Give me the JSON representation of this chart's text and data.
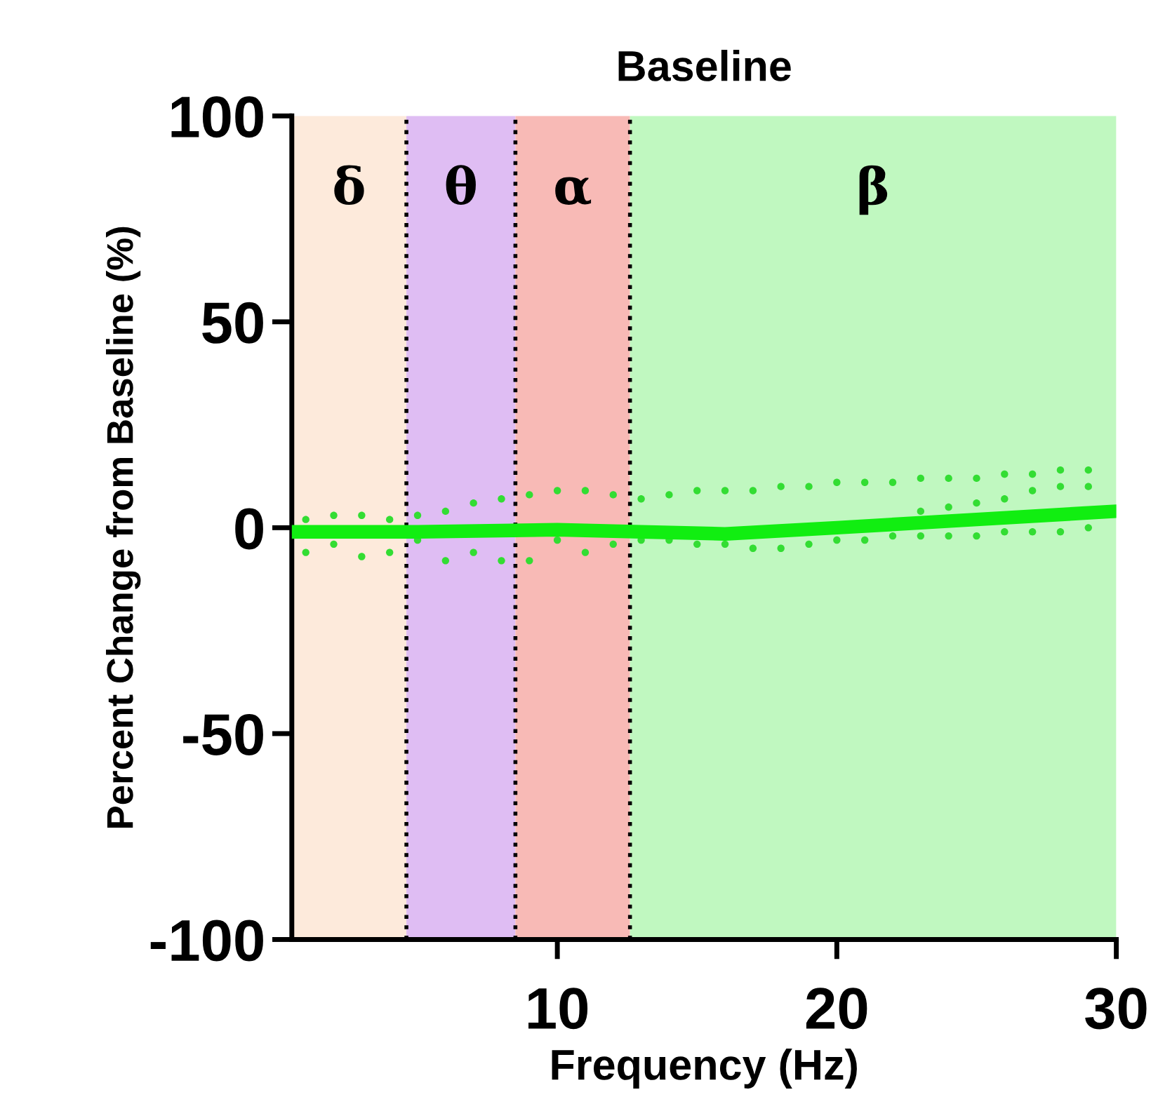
{
  "chart_data": {
    "type": "scatter",
    "title": "Baseline",
    "xlabel": "Frequency (Hz)",
    "ylabel": "Percent Change from Baseline (%)",
    "xlim": [
      0.5,
      30
    ],
    "xticks": [
      10,
      20,
      30
    ],
    "ylim": [
      -100,
      100
    ],
    "yticks": [
      -100,
      -50,
      0,
      50,
      100
    ],
    "grid": false,
    "marker": "circle",
    "series": [
      {
        "color": "#33dd33",
        "x": [
          1,
          2,
          3,
          4,
          5,
          6,
          7,
          8,
          9,
          10,
          11,
          12,
          13,
          14,
          15,
          16,
          17,
          18,
          19,
          20,
          21,
          22,
          23,
          24,
          25,
          26,
          27,
          28,
          29
        ],
        "values": [
          2,
          3,
          3,
          2,
          3,
          4,
          6,
          7,
          8,
          9,
          9,
          8,
          7,
          8,
          9,
          9,
          9,
          10,
          10,
          11,
          11,
          11,
          12,
          12,
          12,
          13,
          13,
          14,
          14
        ]
      },
      {
        "color": "#33dd33",
        "x": [
          23,
          24,
          25,
          26,
          27,
          28,
          29
        ],
        "values": [
          4,
          5,
          6,
          7,
          9,
          10,
          10
        ]
      },
      {
        "color": "#33dd33",
        "x": [
          1,
          2,
          3,
          4,
          5,
          6,
          7,
          8,
          9,
          10,
          11,
          12,
          13,
          14,
          15,
          16,
          17,
          18,
          19,
          20,
          21,
          22,
          23,
          24,
          25,
          26,
          27,
          28,
          29
        ],
        "values": [
          -6,
          -4,
          -7,
          -6,
          -3,
          -8,
          -6,
          -8,
          -8,
          -3,
          -6,
          -4,
          -3,
          -3,
          -4,
          -4,
          -5,
          -5,
          -4,
          -3,
          -3,
          -2,
          -2,
          -2,
          -2,
          -1,
          -1,
          -1,
          0
        ]
      },
      {
        "type": "line",
        "marker": "none",
        "color": "#11ee11",
        "x": [
          0.5,
          5,
          10,
          13,
          16,
          20,
          25,
          30
        ],
        "values": [
          -1,
          -1,
          -0.5,
          -1,
          -1.5,
          0,
          2,
          4
        ]
      }
    ],
    "bands": [
      {
        "axis": "x",
        "from": 0.5,
        "to": 4.6,
        "label": "δ",
        "color": "#fdeadb"
      },
      {
        "axis": "x",
        "from": 4.6,
        "to": 8.5,
        "label": "θ",
        "color": "#dfbdf3"
      },
      {
        "axis": "x",
        "from": 8.5,
        "to": 12.6,
        "label": "α",
        "color": "#f8bab6"
      },
      {
        "axis": "x",
        "from": 12.6,
        "to": 30,
        "label": "β",
        "color": "#c0f8c0"
      }
    ],
    "ref_lines": [
      {
        "axis": "x",
        "value": 4.6,
        "label": null,
        "color": "#000000",
        "line_style": "dotted"
      },
      {
        "axis": "x",
        "value": 8.5,
        "label": null,
        "color": "#000000",
        "line_style": "dotted"
      },
      {
        "axis": "x",
        "value": 12.6,
        "label": null,
        "color": "#000000",
        "line_style": "dotted"
      }
    ]
  }
}
